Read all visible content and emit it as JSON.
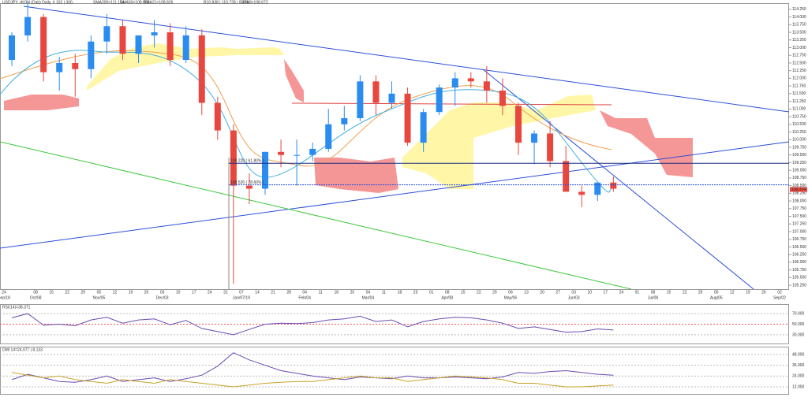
{
  "header": {
    "symbol": "USDJPY -IKON (Dab) Daily, # 102 | 300,",
    "sma200": "SMA200=111.154",
    "sma50": "SMA50=108.960",
    "ema21": "EMA21=108.826",
    "values": "R10.838 | 110.728 | 0.178",
    "sma8": "SMA8=108.672"
  },
  "chart_data": [
    {
      "type": "candlestick",
      "categories": [
        "24",
        null,
        "08",
        "15",
        "22",
        "29",
        "05",
        "12",
        "19",
        "26",
        "03",
        "10",
        "17",
        "24",
        "31",
        "07",
        "14",
        "21",
        "28",
        "04",
        "11",
        "18",
        "25",
        "04",
        "11",
        "18",
        "25",
        "01",
        "08",
        "15",
        "22",
        "29",
        "06",
        "13",
        "20",
        "27",
        "03",
        "10",
        "17",
        "24",
        "01",
        "08",
        "15",
        "22",
        "29",
        "05",
        "12",
        "19",
        "26",
        "02"
      ],
      "month_labels": [
        "Sep/18",
        null,
        "Oct/08",
        null,
        null,
        null,
        "Nov/05",
        null,
        null,
        null,
        "Dec/03",
        null,
        null,
        null,
        null,
        "Jan/07/19",
        null,
        null,
        null,
        "Feb/04",
        null,
        null,
        null,
        "Mar/04",
        null,
        null,
        null,
        null,
        "Apr/08",
        null,
        null,
        null,
        "May/06",
        null,
        null,
        null,
        "Jun/03",
        null,
        null,
        null,
        null,
        "Jul/08",
        null,
        null,
        null,
        "Aug/05",
        null,
        null,
        null,
        "Sep/02"
      ],
      "open": [
        112.6,
        113.4,
        114.0,
        112.2,
        112.5,
        112.3,
        113.2,
        113.7,
        112.8,
        113.4,
        113.5,
        112.6,
        113.4,
        111.2,
        110.3,
        108.5,
        108.4,
        109.6,
        109.5,
        109.5,
        109.7,
        110.5,
        110.7,
        111.9,
        111.2,
        111.5,
        109.9,
        110.9,
        111.7,
        112.0,
        111.9,
        111.6,
        111.1,
        109.9,
        110.2,
        109.3,
        108.3,
        108.2,
        108.6,
        null,
        null,
        null,
        null,
        null,
        null,
        null,
        null,
        null,
        null,
        null
      ],
      "high": [
        113.5,
        114.5,
        114.1,
        112.7,
        112.8,
        113.4,
        114.1,
        113.9,
        113.4,
        113.9,
        113.8,
        113.7,
        113.6,
        111.4,
        110.5,
        108.9,
        109.6,
        110.0,
        110.0,
        109.9,
        111.0,
        111.1,
        112.1,
        112.1,
        111.9,
        111.7,
        111.0,
        111.8,
        112.2,
        112.2,
        112.4,
        112.0,
        111.2,
        110.3,
        110.6,
        109.8,
        108.5,
        108.6,
        108.8,
        null,
        null,
        null,
        null,
        null,
        null,
        null,
        null,
        null,
        null,
        null
      ],
      "low": [
        112.4,
        113.2,
        111.9,
        111.6,
        111.4,
        112.0,
        112.8,
        112.6,
        112.5,
        113.0,
        112.4,
        112.5,
        110.8,
        110.0,
        105.3,
        107.9,
        108.2,
        109.1,
        108.5,
        109.3,
        109.6,
        110.3,
        110.6,
        110.8,
        111.0,
        109.8,
        109.6,
        110.8,
        111.1,
        111.7,
        111.2,
        110.8,
        109.5,
        109.2,
        109.1,
        108.3,
        107.8,
        108.0,
        108.3,
        null,
        null,
        null,
        null,
        null,
        null,
        null,
        null,
        null,
        null,
        null
      ],
      "close": [
        113.4,
        114.0,
        112.2,
        112.5,
        112.3,
        113.2,
        113.7,
        112.8,
        113.4,
        113.5,
        112.6,
        113.4,
        111.2,
        110.3,
        108.5,
        108.4,
        109.6,
        109.5,
        109.5,
        109.7,
        110.5,
        110.7,
        111.9,
        111.2,
        111.5,
        109.9,
        110.9,
        111.7,
        112.0,
        111.9,
        111.6,
        111.1,
        109.9,
        110.2,
        109.3,
        108.3,
        108.2,
        108.6,
        108.4,
        null,
        null,
        null,
        null,
        null,
        null,
        null,
        null,
        null,
        null,
        null
      ],
      "up_color": "#2a8cf0",
      "down_color": "#e8473f",
      "ylim": [
        105.15,
        114.4
      ],
      "yticks": [
        {
          "value": 114.25,
          "label": "114.250"
        },
        {
          "value": 114.0,
          "label": "114.000"
        },
        {
          "value": 113.75,
          "label": "113.750"
        },
        {
          "value": 113.5,
          "label": "113.500"
        },
        {
          "value": 113.25,
          "label": "113.250"
        },
        {
          "value": 113.0,
          "label": "113.000"
        },
        {
          "value": 112.75,
          "label": "112.750"
        },
        {
          "value": 112.5,
          "label": "112.500"
        },
        {
          "value": 112.25,
          "label": "112.250"
        },
        {
          "value": 112.0,
          "label": "112.000"
        },
        {
          "value": 111.75,
          "label": "111.750"
        },
        {
          "value": 111.5,
          "label": "111.500"
        },
        {
          "value": 111.25,
          "label": "111.250"
        },
        {
          "value": 111.0,
          "label": "111.000"
        },
        {
          "value": 110.75,
          "label": "110.750"
        },
        {
          "value": 110.5,
          "label": "110.500"
        },
        {
          "value": 110.25,
          "label": "110.250"
        },
        {
          "value": 110.0,
          "label": "110.000"
        },
        {
          "value": 109.75,
          "label": "109.750"
        },
        {
          "value": 109.5,
          "label": "109.500"
        },
        {
          "value": 109.25,
          "label": "109.250"
        },
        {
          "value": 109.0,
          "label": "109.000"
        },
        {
          "value": 108.75,
          "label": "108.750"
        },
        {
          "value": 108.5,
          "label": "108.500"
        },
        {
          "value": 108.25,
          "label": "108.250"
        },
        {
          "value": 108.0,
          "label": "108.000"
        },
        {
          "value": 107.75,
          "label": "107.750"
        },
        {
          "value": 107.5,
          "label": "107.500"
        },
        {
          "value": 107.25,
          "label": "107.250"
        },
        {
          "value": 107.0,
          "label": "107.000"
        },
        {
          "value": 106.75,
          "label": "106.750"
        },
        {
          "value": 106.5,
          "label": "106.500"
        },
        {
          "value": 106.25,
          "label": "106.250"
        },
        {
          "value": 106.0,
          "label": "106.000"
        },
        {
          "value": 105.75,
          "label": "105.750"
        },
        {
          "value": 105.5,
          "label": "105.500"
        },
        {
          "value": 105.25,
          "label": "105.250"
        }
      ],
      "levels": [
        {
          "value": 109.228,
          "label": "109.228 ( 61.80% )"
        },
        {
          "value": 108.526,
          "label": "108.526 ( 78.60% )"
        }
      ],
      "last_price": {
        "value": 108.374,
        "label": "108.374"
      }
    },
    {
      "type": "line",
      "title": "RSI(14)=38.371",
      "ylim": [
        15,
        85
      ],
      "yticks": [
        {
          "value": 70,
          "label": "70.000"
        },
        {
          "value": 50,
          "label": "50.000"
        },
        {
          "value": 30,
          "label": "30.000"
        }
      ],
      "series": [
        {
          "color": "#6a4bb0",
          "values": [
            62,
            70,
            48,
            50,
            47,
            58,
            63,
            52,
            58,
            60,
            49,
            57,
            42,
            36,
            30,
            40,
            50,
            52,
            51,
            53,
            58,
            60,
            65,
            55,
            58,
            45,
            55,
            60,
            63,
            62,
            58,
            52,
            42,
            45,
            40,
            35,
            36,
            41,
            39,
            null,
            null,
            null,
            null,
            null,
            null,
            null,
            null,
            null,
            null,
            null
          ]
        }
      ]
    },
    {
      "type": "line",
      "title": "DMI 14=24.077 | 8.133",
      "ylim": [
        5,
        55
      ],
      "yticks": [
        {
          "value": 48,
          "label": "48.000"
        },
        {
          "value": 36,
          "label": "36.000"
        },
        {
          "value": 24,
          "label": "24.000"
        },
        {
          "value": 12,
          "label": "12.000"
        }
      ],
      "series": [
        {
          "color": "#6a4bb0",
          "values": [
            20,
            26,
            22,
            18,
            17,
            20,
            24,
            18,
            20,
            22,
            18,
            21,
            25,
            35,
            50,
            42,
            36,
            30,
            27,
            24,
            22,
            20,
            23,
            22,
            21,
            24,
            22,
            22,
            23,
            22,
            21,
            23,
            28,
            27,
            29,
            30,
            28,
            26,
            25,
            null,
            null,
            null,
            null,
            null,
            null,
            null,
            null,
            null,
            null,
            null
          ]
        },
        {
          "color": "#c9a227",
          "values": [
            28,
            25,
            22,
            24,
            20,
            18,
            16,
            20,
            18,
            16,
            20,
            18,
            16,
            14,
            12,
            14,
            16,
            17,
            18,
            18,
            20,
            22,
            24,
            22,
            22,
            18,
            20,
            22,
            24,
            23,
            22,
            20,
            16,
            16,
            14,
            12,
            12,
            13,
            14,
            null,
            null,
            null,
            null,
            null,
            null,
            null,
            null,
            null,
            null,
            null
          ]
        }
      ]
    }
  ]
}
